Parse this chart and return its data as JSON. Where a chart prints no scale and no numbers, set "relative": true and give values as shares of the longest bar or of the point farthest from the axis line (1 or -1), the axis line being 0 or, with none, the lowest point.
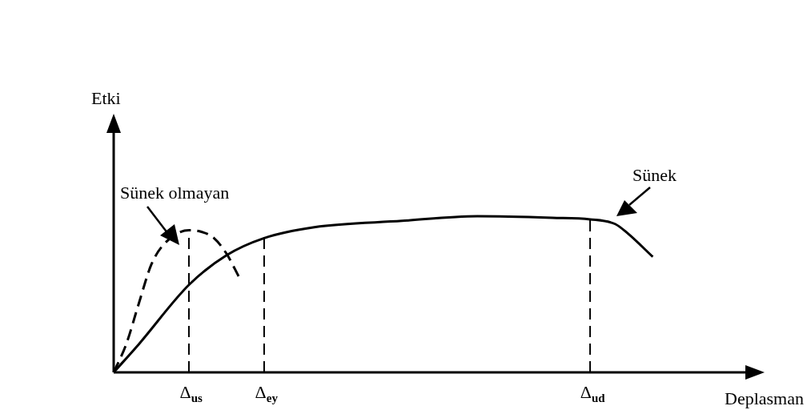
{
  "chart_data": {
    "type": "line",
    "relative": true,
    "xlabel": "Deplasman",
    "marker": "none",
    "categories": [
      null,
      null,
      null,
      null,
      null,
      null,
      "Δ$_{us}$",
      null,
      null,
      null,
      null,
      null,
      "Δ$_{ey}$",
      null,
      null,
      null,
      null,
      null,
      null,
      null,
      null,
      null,
      null,
      null,
      null,
      null,
      null,
      null,
      null,
      null,
      null,
      null,
      null,
      null,
      null,
      null,
      null,
      null,
      "Δ$_{ud}$",
      null,
      null,
      null,
      null,
      null,
      null,
      null,
      null,
      null,
      null,
      null,
      null
    ],
    "ref_lines": [
      {
        "axis": "x",
        "value": "Δ$_{us}$",
        "label": null,
        "line_style": "dashed",
        "color": "#000000"
      },
      {
        "axis": "x",
        "value": "Δ$_{ey}$",
        "label": null,
        "line_style": "dashed",
        "color": "#000000"
      },
      {
        "axis": "x",
        "value": "Δ$_{ud}$",
        "label": null,
        "line_style": "dashed",
        "color": "#000000"
      }
    ],
    "series": [
      {
        "color": "#000000",
        "line_style": "solid",
        "values": [
          0,
          null,
          0.18,
          null,
          null,
          null,
          0.56,
          null,
          null,
          0.75,
          null,
          null,
          0.86,
          null,
          null,
          null,
          0.93,
          null,
          null,
          null,
          null,
          null,
          null,
          0.97,
          null,
          null,
          null,
          null,
          null,
          1,
          null,
          null,
          null,
          null,
          null,
          0.99,
          null,
          null,
          0.98,
          null,
          0.95,
          0.89,
          null,
          0.74,
          null,
          null,
          null,
          null,
          null,
          null,
          null
        ]
      },
      {
        "color": "#000000",
        "line_style": "dashed",
        "values": [
          0,
          0.18,
          0.44,
          0.69,
          0.82,
          null,
          0.91,
          0.9,
          0.86,
          0.76,
          0.61,
          null,
          null,
          null,
          null,
          null,
          null,
          null,
          null,
          null,
          null,
          null,
          null,
          null,
          null,
          null,
          null,
          null,
          null,
          null,
          null,
          null,
          null,
          null,
          null,
          null,
          null,
          null,
          null,
          null,
          null,
          null,
          null,
          null,
          null,
          null,
          null,
          null,
          null,
          null,
          null
        ]
      }
    ],
    "annotations": [
      "Sünek olmayan",
      "Sünek",
      "Etki"
    ]
  }
}
